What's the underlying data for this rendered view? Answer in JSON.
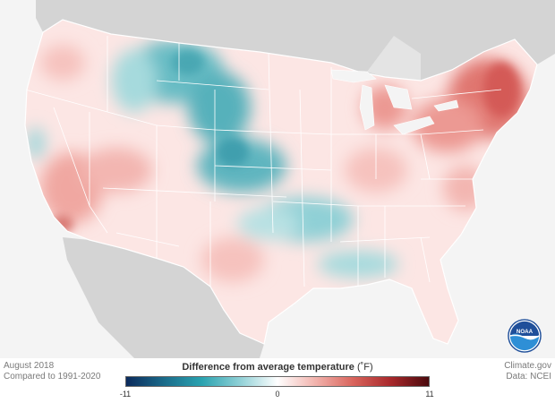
{
  "caption": {
    "period": "August 2018",
    "baseline": "Compared to 1991-2020"
  },
  "credits": {
    "source": "Climate.gov",
    "data": "Data: NCEI"
  },
  "legend": {
    "title": "Difference from average temperature",
    "unit": "(˚F)",
    "min_label": "-11",
    "mid_label": "0",
    "max_label": "11",
    "min_value": -11,
    "max_value": 11,
    "colors": [
      "#0b2a5c",
      "#1a6b8a",
      "#2aa3b0",
      "#8fd0d6",
      "#ffffff",
      "#f2b3ad",
      "#d9645c",
      "#a8282b",
      "#4a0a0d"
    ]
  },
  "logo": {
    "name": "noaa-logo",
    "text": "NOAA"
  },
  "map_colors": {
    "land_base": "#fde8e6",
    "cool": "#7cc5cc",
    "cool_strong": "#3f9fae",
    "warm": "#f3aaa3",
    "warm_strong": "#d9625d",
    "neighbors": "#cfcfcf",
    "water": "#f4f4f4",
    "border": "#ffffff"
  }
}
